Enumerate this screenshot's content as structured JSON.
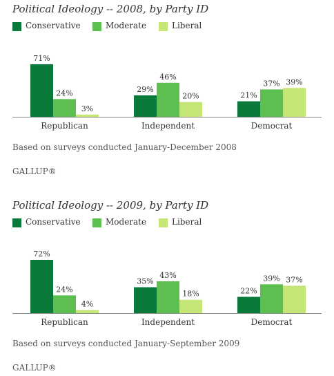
{
  "colors": {
    "Conservative": "#0a7a3a",
    "Moderate": "#5cbf4f",
    "Liberal": "#c4e676",
    "axis": "#888888",
    "text": "#333333"
  },
  "legend": [
    "Conservative",
    "Moderate",
    "Liberal"
  ],
  "chart_data": [
    {
      "type": "bar",
      "title": "Political Ideology -- 2008, by Party ID",
      "categories": [
        "Republican",
        "Independent",
        "Democrat"
      ],
      "series": [
        {
          "name": "Conservative",
          "values": [
            71,
            29,
            21
          ]
        },
        {
          "name": "Moderate",
          "values": [
            24,
            46,
            37
          ]
        },
        {
          "name": "Liberal",
          "values": [
            3,
            20,
            39
          ]
        }
      ],
      "value_labels": [
        [
          "71%",
          "24%",
          "3%"
        ],
        [
          "29%",
          "46%",
          "20%"
        ],
        [
          "21%",
          "37%",
          "39%"
        ]
      ],
      "ylim": [
        0,
        80
      ],
      "grid": false,
      "legend_position": "top-left",
      "note": "Based on surveys conducted January-December 2008",
      "source": "GALLUP®"
    },
    {
      "type": "bar",
      "title": "Political Ideology -- 2009, by Party ID",
      "categories": [
        "Republican",
        "Independent",
        "Democrat"
      ],
      "series": [
        {
          "name": "Conservative",
          "values": [
            72,
            35,
            22
          ]
        },
        {
          "name": "Moderate",
          "values": [
            24,
            43,
            39
          ]
        },
        {
          "name": "Liberal",
          "values": [
            4,
            18,
            37
          ]
        }
      ],
      "value_labels": [
        [
          "72%",
          "24%",
          "4%"
        ],
        [
          "35%",
          "43%",
          "18%"
        ],
        [
          "22%",
          "39%",
          "37%"
        ]
      ],
      "ylim": [
        0,
        80
      ],
      "grid": false,
      "legend_position": "top-left",
      "note": "Based on surveys conducted January-September 2009",
      "source": "GALLUP®"
    }
  ]
}
